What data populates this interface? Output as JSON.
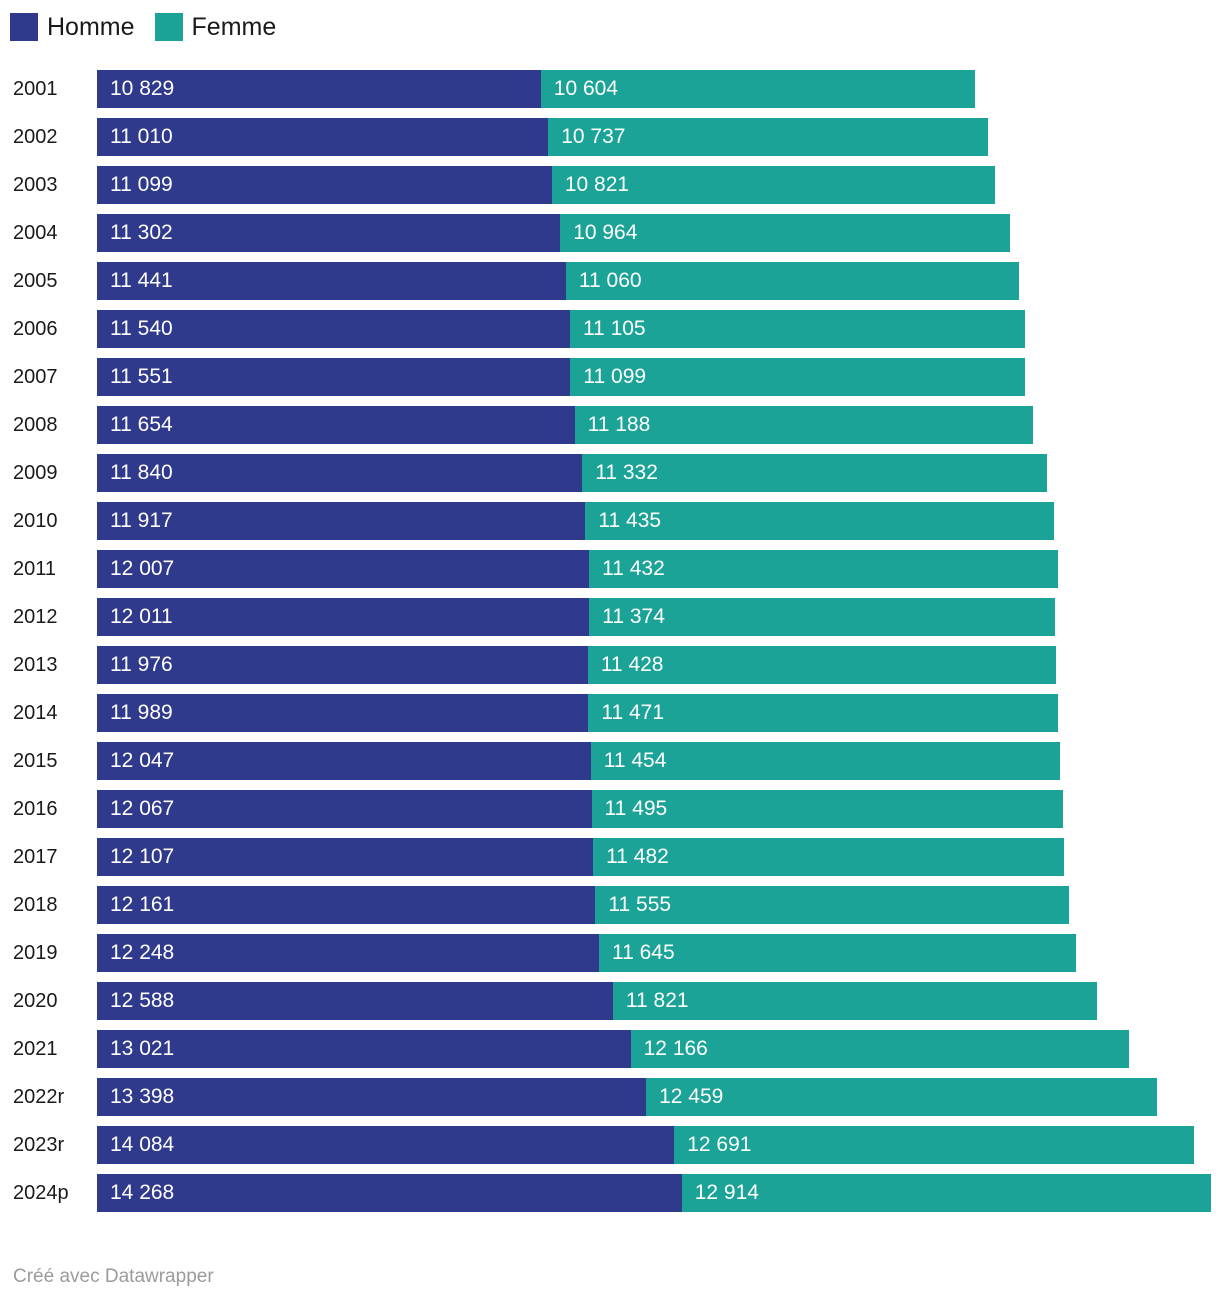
{
  "legend": {
    "items": [
      {
        "label": "Homme",
        "color": "#2f3a8c"
      },
      {
        "label": "Femme",
        "color": "#1aa396"
      }
    ]
  },
  "footer": {
    "credit": "Créé avec Datawrapper"
  },
  "colors": {
    "homme_bar": "#2f3a8c",
    "femme_bar": "#1aa396",
    "value_label": "#ffffff",
    "year_label": "#1a1a1a",
    "credit_text": "#9b9b9b",
    "background": "#ffffff"
  },
  "chart_data": {
    "type": "bar",
    "stacked": true,
    "orientation": "horizontal",
    "title": "",
    "xlabel": "",
    "ylabel": "",
    "grid": false,
    "legend_position": "top-left",
    "value_labels": "inside-start, white, thousands separated by space",
    "categories": [
      "2001",
      "2002",
      "2003",
      "2004",
      "2005",
      "2006",
      "2007",
      "2008",
      "2009",
      "2010",
      "2011",
      "2012",
      "2013",
      "2014",
      "2015",
      "2016",
      "2017",
      "2018",
      "2019",
      "2020",
      "2021",
      "2022r",
      "2023r",
      "2024p"
    ],
    "series": [
      {
        "name": "Homme",
        "color": "#2f3a8c",
        "values": [
          10829,
          11010,
          11099,
          11302,
          11441,
          11540,
          11551,
          11654,
          11840,
          11917,
          12007,
          12011,
          11976,
          11989,
          12047,
          12067,
          12107,
          12161,
          12248,
          12588,
          13021,
          13398,
          14084,
          14268
        ]
      },
      {
        "name": "Femme",
        "color": "#1aa396",
        "values": [
          10604,
          10737,
          10821,
          10964,
          11060,
          11105,
          11099,
          11188,
          11332,
          11435,
          11432,
          11374,
          11428,
          11471,
          11454,
          11495,
          11482,
          11555,
          11645,
          11821,
          12166,
          12459,
          12691,
          12914
        ]
      }
    ],
    "xlim": [
      0,
      27182
    ]
  }
}
